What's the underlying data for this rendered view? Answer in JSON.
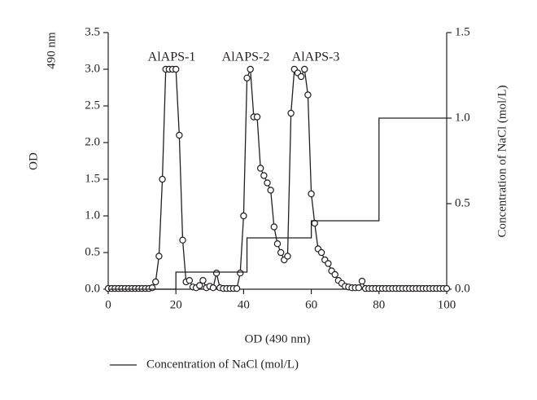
{
  "chart_data": {
    "type": "line",
    "xlabel": "OD (490 nm)",
    "ylabel": "OD",
    "ylabel_top": "490 nm",
    "y2label": "Concentration of NaCl (mol/L)",
    "annotations": [
      "AlAPS-1",
      "AlAPS-2",
      "AlAPS-3"
    ],
    "xlim": [
      0,
      100
    ],
    "xticks": [
      0,
      20,
      40,
      60,
      80,
      100
    ],
    "ylim": [
      0,
      3.5
    ],
    "yticks": [
      {
        "value": 0,
        "label": "0.0"
      },
      0.5,
      {
        "value": 1,
        "label": "1.0"
      },
      1.5,
      {
        "value": 2,
        "label": "2.0"
      },
      2.5,
      {
        "value": 3,
        "label": "3.0"
      },
      3.5
    ],
    "y2lim": [
      0,
      1.5
    ],
    "y2ticks": [
      {
        "value": 0,
        "label": "0.0"
      },
      0.5,
      {
        "value": 1,
        "label": "1.0"
      },
      1.5
    ],
    "series": [
      {
        "color": "#231f20",
        "marker": "circle",
        "x": [
          0,
          1,
          2,
          3,
          4,
          5,
          6,
          7,
          8,
          9,
          10,
          11,
          12,
          13,
          14,
          15,
          16,
          17,
          18,
          19,
          20,
          21,
          22,
          23,
          24,
          25,
          26,
          27,
          28,
          29,
          30,
          31,
          32,
          33,
          34,
          35,
          36,
          37,
          38,
          39,
          40,
          41,
          42,
          43,
          44,
          45,
          46,
          47,
          48,
          49,
          50,
          51,
          52,
          53,
          54,
          55,
          56,
          57,
          58,
          59,
          60,
          61,
          62,
          63,
          64,
          65,
          66,
          67,
          68,
          69,
          70,
          71,
          72,
          73,
          74,
          75,
          76,
          77,
          78,
          79,
          80,
          81,
          82,
          83,
          84,
          85,
          86,
          87,
          88,
          89,
          90,
          91,
          92,
          93,
          94,
          95,
          96,
          97,
          98,
          99,
          100
        ],
        "values": [
          0.01,
          0.01,
          0.01,
          0.01,
          0.01,
          0.01,
          0.01,
          0.01,
          0.01,
          0.01,
          0.01,
          0.01,
          0.01,
          0.02,
          0.1,
          0.45,
          1.5,
          3.0,
          3.0,
          3.0,
          3.0,
          2.1,
          0.67,
          0.1,
          0.12,
          0.03,
          0.02,
          0.05,
          0.12,
          0.02,
          0.04,
          0.02,
          0.22,
          0.02,
          0.01,
          0.01,
          0.01,
          0.01,
          0.01,
          0.22,
          1.0,
          2.88,
          3.0,
          2.35,
          2.35,
          1.65,
          1.55,
          1.45,
          1.35,
          0.85,
          0.62,
          0.5,
          0.4,
          0.45,
          2.4,
          3.0,
          2.95,
          2.9,
          3.0,
          2.65,
          1.3,
          0.9,
          0.55,
          0.5,
          0.4,
          0.35,
          0.25,
          0.2,
          0.12,
          0.08,
          0.04,
          0.03,
          0.02,
          0.02,
          0.02,
          0.11,
          0.01,
          0.01,
          0.01,
          0.01,
          0.01,
          0.01,
          0.01,
          0.01,
          0.01,
          0.01,
          0.01,
          0.01,
          0.01,
          0.01,
          0.01,
          0.01,
          0.01,
          0.01,
          0.01,
          0.01,
          0.01,
          0.01,
          0.01,
          0.01,
          0.01
        ]
      },
      {
        "name": "Concentration of NaCl (mol/L)",
        "color": "#231f20",
        "axis": "y2",
        "x": [
          0,
          20,
          20,
          41,
          41,
          60,
          60,
          80,
          80,
          100
        ],
        "values": [
          0,
          0,
          0.1,
          0.1,
          0.3,
          0.3,
          0.4,
          0.4,
          1.0,
          1.0
        ]
      }
    ]
  }
}
